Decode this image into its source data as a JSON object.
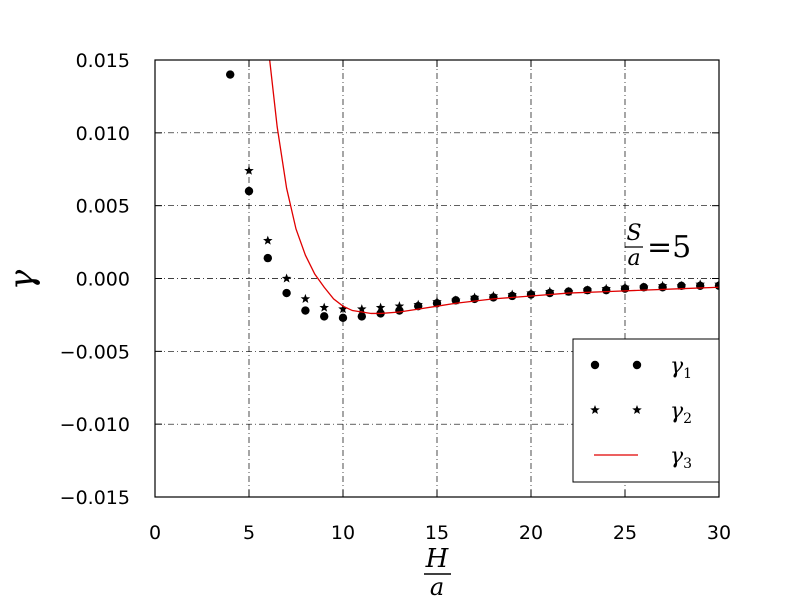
{
  "chart_data": {
    "type": "scatter",
    "xlim": [
      0,
      30
    ],
    "ylim": [
      -0.015,
      0.015
    ],
    "xticks": [
      "0",
      "5",
      "10",
      "15",
      "20",
      "25",
      "30"
    ],
    "yticks": [
      "0.015",
      "0.010",
      "0.005",
      "0.000",
      "−0.005",
      "−0.010",
      "−0.015"
    ],
    "grid": true,
    "legend_position": "bottom-right",
    "x_label": {
      "numerator": "H",
      "denominator": "a"
    },
    "y_label": "γ",
    "annotation": {
      "numerator": "S",
      "denominator": "a",
      "equals": "=5"
    },
    "series": [
      {
        "name": "γ1",
        "base": "γ",
        "sub": "1",
        "marker": "circle",
        "color": "#000000",
        "x": [
          4,
          5,
          6,
          7,
          8,
          9,
          10,
          11,
          12,
          13,
          14,
          15,
          16,
          17,
          18,
          19,
          20,
          21,
          22,
          23,
          24,
          25,
          26,
          27,
          28,
          29,
          30
        ],
        "y": [
          0.014,
          0.006,
          0.0014,
          -0.001,
          -0.0022,
          -0.0026,
          -0.0027,
          -0.0026,
          -0.0024,
          -0.0022,
          -0.0019,
          -0.0017,
          -0.0015,
          -0.0014,
          -0.0013,
          -0.0012,
          -0.0011,
          -0.001,
          -0.0009,
          -0.0008,
          -0.0008,
          -0.0007,
          -0.0006,
          -0.0006,
          -0.0005,
          -0.0005,
          -0.0005
        ]
      },
      {
        "name": "γ2",
        "base": "γ",
        "sub": "2",
        "marker": "star",
        "color": "#000000",
        "x": [
          5,
          6,
          7,
          8,
          9,
          10,
          11,
          12,
          13,
          14,
          15,
          16,
          17,
          18,
          19,
          20,
          21,
          22,
          23,
          24,
          25,
          26,
          27,
          28,
          29,
          30
        ],
        "y": [
          0.0074,
          0.0026,
          0.0,
          -0.0014,
          -0.002,
          -0.0021,
          -0.0021,
          -0.002,
          -0.0019,
          -0.0018,
          -0.0016,
          -0.0015,
          -0.0013,
          -0.0012,
          -0.0011,
          -0.001,
          -0.0009,
          -0.0009,
          -0.0008,
          -0.0007,
          -0.0006,
          -0.0006,
          -0.0005,
          -0.0005,
          -0.0004,
          -0.0004
        ]
      },
      {
        "name": "γ3",
        "base": "γ",
        "sub": "3",
        "marker": "line",
        "color": "#e00000",
        "x": [
          6.1,
          6.5,
          7,
          7.5,
          8,
          8.5,
          9,
          9.5,
          10,
          10.5,
          11,
          11.5,
          12,
          13,
          14,
          15,
          16,
          18,
          20,
          22,
          24,
          26,
          28,
          30
        ],
        "y": [
          0.015,
          0.0104,
          0.0062,
          0.0034,
          0.0016,
          0.0003,
          -0.0006,
          -0.0014,
          -0.0019,
          -0.0022,
          -0.0023,
          -0.0024,
          -0.0024,
          -0.0023,
          -0.0021,
          -0.0019,
          -0.0017,
          -0.0014,
          -0.0012,
          -0.001,
          -0.0009,
          -0.0008,
          -0.0007,
          -0.0006
        ]
      }
    ]
  }
}
